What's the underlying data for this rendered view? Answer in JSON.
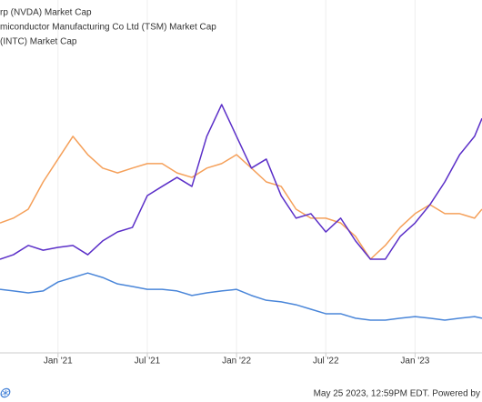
{
  "chart_data": {
    "type": "line",
    "footer": "May 25 2023, 12:59PM EDT. Powered by",
    "x": [
      8.1,
      9,
      10,
      11,
      12,
      13,
      14,
      15,
      16,
      17,
      18,
      19,
      20,
      21,
      22,
      23,
      24,
      25,
      26,
      27,
      28,
      29,
      30,
      31,
      32,
      33,
      34,
      35,
      36,
      37,
      38,
      39,
      40,
      40.5
    ],
    "xlim": [
      8.1,
      40.5
    ],
    "xticks": [
      {
        "value": 12,
        "label": "Jan '21"
      },
      {
        "value": 18,
        "label": "Jul '21"
      },
      {
        "value": 24,
        "label": "Jan '22"
      },
      {
        "value": 30,
        "label": "Jul '22"
      },
      {
        "value": 36,
        "label": "Jan '23"
      }
    ],
    "ylim": [
      0,
      1100
    ],
    "grid": true,
    "series": [
      {
        "name": "rp (NVDA) Market Cap",
        "color": "#5b2fc8",
        "values": [
          292,
          306,
          335,
          320,
          329,
          335,
          306,
          349,
          377,
          391,
          490,
          519,
          547,
          519,
          675,
          774,
          675,
          576,
          604,
          490,
          420,
          434,
          377,
          420,
          349,
          292,
          292,
          363,
          405,
          462,
          533,
          618,
          675,
          731
        ]
      },
      {
        "name": "miconductor Manufacturing Co Ltd (TSM) Market Cap",
        "color": "#f5a05a",
        "values": [
          405,
          420,
          448,
          533,
          604,
          675,
          618,
          576,
          561,
          576,
          590,
          590,
          561,
          547,
          576,
          590,
          618,
          576,
          533,
          519,
          448,
          420,
          420,
          405,
          363,
          292,
          335,
          391,
          434,
          462,
          434,
          434,
          420,
          448
        ]
      },
      {
        "name": "(INTC) Market Cap",
        "color": "#4a86d9",
        "values": [
          198,
          193,
          187,
          193,
          221,
          235,
          249,
          235,
          215,
          207,
          198,
          198,
          193,
          179,
          187,
          193,
          198,
          179,
          164,
          159,
          150,
          136,
          122,
          122,
          108,
          102,
          102,
          108,
          113,
          108,
          102,
          108,
          113,
          108
        ]
      }
    ]
  }
}
